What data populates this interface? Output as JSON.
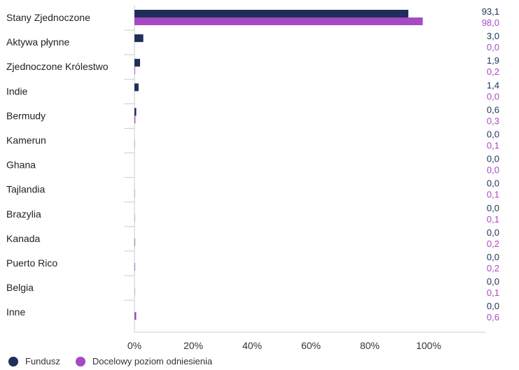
{
  "chart_data": {
    "type": "bar",
    "orientation": "horizontal",
    "categories": [
      "Stany Zjednoczone",
      "Aktywa płynne",
      "Zjednoczone Królestwo",
      "Indie",
      "Bermudy",
      "Kamerun",
      "Ghana",
      "Tajlandia",
      "Brazylia",
      "Kanada",
      "Puerto Rico",
      "Belgia",
      "Inne"
    ],
    "series": [
      {
        "name": "Fundusz",
        "color": "#1f2f5a",
        "values": [
          93.1,
          3.0,
          1.9,
          1.4,
          0.6,
          0.0,
          0.0,
          0.0,
          0.0,
          0.0,
          0.0,
          0.0,
          0.0
        ],
        "labels": [
          "93,1",
          "3,0",
          "1,9",
          "1,4",
          "0,6",
          "0,0",
          "0,0",
          "0,0",
          "0,0",
          "0,0",
          "0,0",
          "0,0",
          "0,0"
        ]
      },
      {
        "name": "Docelowy poziom odniesienia",
        "color": "#a54ac2",
        "values": [
          98.0,
          0.0,
          0.2,
          0.0,
          0.3,
          0.1,
          0.0,
          0.1,
          0.1,
          0.2,
          0.2,
          0.1,
          0.6
        ],
        "labels": [
          "98,0",
          "0,0",
          "0,2",
          "0,0",
          "0,3",
          "0,1",
          "0,0",
          "0,1",
          "0,1",
          "0,2",
          "0,2",
          "0,1",
          "0,6"
        ]
      }
    ],
    "xticks": [
      "0%",
      "20%",
      "40%",
      "60%",
      "80%",
      "100%"
    ],
    "xlim": [
      0,
      120
    ],
    "grid": false,
    "legend": "bottom-left"
  }
}
